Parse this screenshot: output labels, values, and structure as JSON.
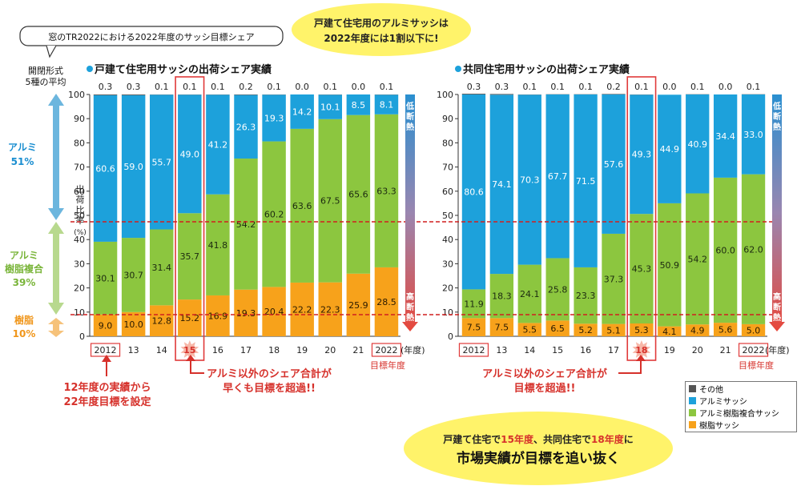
{
  "colors": {
    "jushi": "#f7a21b",
    "fukugou": "#8cc63f",
    "alumi": "#1da1db",
    "other": "#555555",
    "highlight": "#e03a3a",
    "red_line": "#d11f1f"
  },
  "top_bubble": {
    "line1": "戸建て住宅用のアルミサッシは",
    "line2": "2022年度には1割以下に!"
  },
  "tr_label": "窓のTR2022における2022年度のサッシ目標シェア",
  "sidebar": {
    "heading_line1": "開閉形式",
    "heading_line2": "5種の平均",
    "alumi_name": "アルミ",
    "alumi_value": "51%",
    "fukugou_name_line1": "アルミ",
    "fukugou_name_line2": "樹脂複合",
    "fukugou_value": "39%",
    "jushi_name": "樹脂",
    "jushi_value": "10%"
  },
  "ylabel_chars": [
    "出",
    "荷",
    "比",
    "率",
    "(%)"
  ],
  "side_arrow": {
    "top": [
      "低",
      "断",
      "熱"
    ],
    "bottom": [
      "高",
      "断",
      "熱"
    ]
  },
  "year_unit": "(年度)",
  "target_label": "目標年度",
  "callouts": {
    "left1_line1": "12年度の実績から",
    "left1_line2": "22年度目標を設定",
    "left2_line1": "アルミ以外のシェア合計が",
    "left2_line2": "早くも目標を超過!!",
    "right_line1": "アルミ以外のシェア合計が",
    "right_line2": "目標を超過!!"
  },
  "bottom_bubble": {
    "prefix": "戸建て住宅で",
    "y1": "15年度",
    "mid": "、共同住宅で",
    "y2": "18年度",
    "suffix": "に",
    "line2": "市場実績が目標を追い抜く"
  },
  "legend": [
    {
      "label": "その他",
      "key": "other"
    },
    {
      "label": "アルミサッシ",
      "key": "alumi"
    },
    {
      "label": "アルミ樹脂複合サッシ",
      "key": "fukugou"
    },
    {
      "label": "樹脂サッシ",
      "key": "jushi"
    }
  ],
  "chart_data": [
    {
      "type": "bar",
      "stacked": true,
      "title": "戸建て住宅用サッシの出荷シェア実績",
      "ylabel": "出荷比率(%)",
      "xlabel": "(年度)",
      "ylim": [
        0,
        100
      ],
      "yticks": [
        0,
        10,
        20,
        30,
        40,
        50,
        60,
        70,
        80,
        90,
        100
      ],
      "categories": [
        "2012",
        "13",
        "14",
        "15",
        "16",
        "17",
        "18",
        "19",
        "20",
        "21",
        "2022"
      ],
      "boxed_categories": [
        "2012",
        "15",
        "2022"
      ],
      "highlight_category": "15",
      "series": [
        {
          "name": "樹脂サッシ",
          "key": "jushi",
          "values": [
            9.0,
            10.0,
            12.8,
            15.2,
            16.9,
            19.3,
            20.4,
            22.2,
            22.3,
            25.9,
            28.5
          ]
        },
        {
          "name": "アルミ樹脂複合サッシ",
          "key": "fukugou",
          "values": [
            30.1,
            30.7,
            31.4,
            35.7,
            41.8,
            54.2,
            60.2,
            63.6,
            67.5,
            65.6,
            63.3
          ]
        },
        {
          "name": "アルミサッシ",
          "key": "alumi",
          "values": [
            60.6,
            59.0,
            55.7,
            49.0,
            41.2,
            26.3,
            19.3,
            14.2,
            10.1,
            8.5,
            8.1
          ]
        },
        {
          "name": "その他",
          "key": "other",
          "values": [
            0.3,
            0.3,
            0.1,
            0.1,
            0.1,
            0.2,
            0.1,
            0.0,
            0.1,
            0.0,
            0.1
          ]
        }
      ],
      "target_lines": [
        49,
        10
      ]
    },
    {
      "type": "bar",
      "stacked": true,
      "title": "共同住宅用サッシの出荷シェア実績",
      "ylabel": "",
      "xlabel": "(年度)",
      "ylim": [
        0,
        100
      ],
      "yticks": [
        0,
        10,
        20,
        30,
        40,
        50,
        60,
        70,
        80,
        90,
        100
      ],
      "categories": [
        "2012",
        "13",
        "14",
        "15",
        "16",
        "17",
        "18",
        "19",
        "20",
        "21",
        "2022"
      ],
      "boxed_categories": [
        "2012",
        "18",
        "2022"
      ],
      "highlight_category": "18",
      "series": [
        {
          "name": "樹脂サッシ",
          "key": "jushi",
          "values": [
            7.5,
            7.5,
            5.5,
            6.5,
            5.2,
            5.1,
            5.3,
            4.1,
            4.9,
            5.6,
            5.0
          ]
        },
        {
          "name": "アルミ樹脂複合サッシ",
          "key": "fukugou",
          "values": [
            11.9,
            18.3,
            24.1,
            25.8,
            23.3,
            37.3,
            45.3,
            50.9,
            54.2,
            60.0,
            62.0
          ]
        },
        {
          "name": "アルミサッシ",
          "key": "alumi",
          "values": [
            80.6,
            74.1,
            70.3,
            67.7,
            71.5,
            57.6,
            49.3,
            44.9,
            40.9,
            34.4,
            33.0
          ]
        },
        {
          "name": "その他",
          "key": "other",
          "values": [
            0.3,
            0.3,
            0.1,
            0.1,
            0.1,
            0.2,
            0.1,
            0.0,
            0.1,
            0.0,
            0.1
          ]
        }
      ],
      "target_lines": [
        49,
        10
      ]
    }
  ]
}
